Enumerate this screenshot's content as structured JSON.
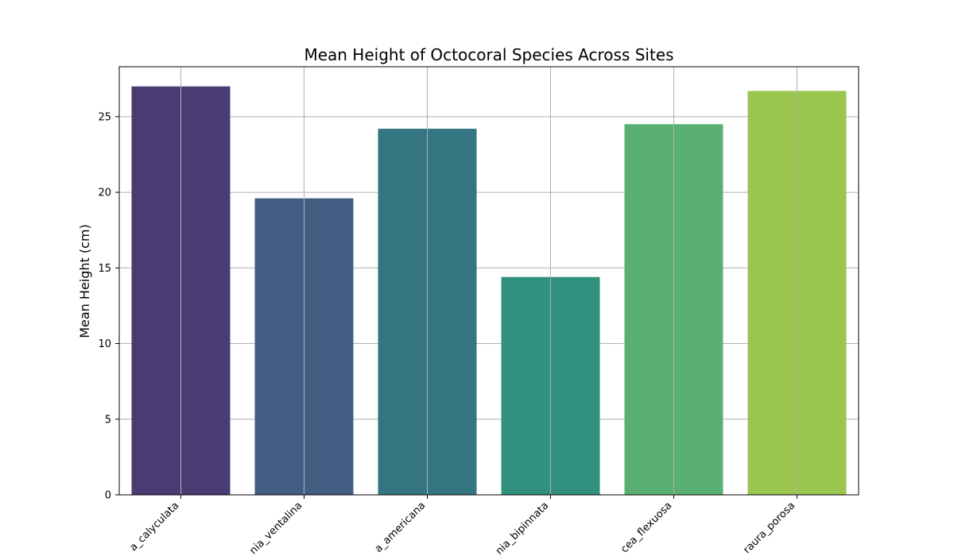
{
  "chart_data": {
    "type": "bar",
    "title": "Mean Height of Octocoral Species Across Sites",
    "xlabel": "",
    "ylabel": "Mean Height (cm)",
    "categories": [
      "a_calyculata",
      "nia_ventalina",
      "a_americana",
      "nia_bipinnata",
      "cea_flexuosa",
      "raura_porosa"
    ],
    "values": [
      27.0,
      19.6,
      24.2,
      14.4,
      24.5,
      26.7
    ],
    "colors": [
      "#4a3b72",
      "#415e82",
      "#337681",
      "#32917e",
      "#5ab073",
      "#9ac54e"
    ],
    "ylim": [
      0,
      28.3
    ],
    "yticks": [
      0,
      5,
      10,
      15,
      20,
      25
    ],
    "grid": true,
    "legend": null
  }
}
